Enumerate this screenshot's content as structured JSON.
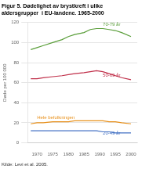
{
  "chart_data": {
    "type": "line",
    "title": [
      "Figur 5. Dødelighet av brystkreft i ulike",
      "aldersgrupper  i EU-landene. 1965-2000"
    ],
    "ylabel": "Døde per 100 000",
    "source": "Kilde: Levi et al. 2005.",
    "x": [
      1968,
      1970,
      1972,
      1975,
      1978,
      1980,
      1982,
      1985,
      1987,
      1989,
      1991,
      1993,
      1995,
      1997,
      2000
    ],
    "series": [
      {
        "name": "70-79 år",
        "color": "#5a9e3a",
        "values": [
          93,
          95,
          97,
          100,
          103,
          106,
          108,
          110,
          113,
          114,
          114,
          113,
          112,
          110,
          106
        ]
      },
      {
        "name": "50-69 år",
        "color": "#c0304a",
        "values": [
          64,
          64,
          65,
          66,
          67,
          68,
          69,
          70,
          71,
          72,
          71,
          69,
          67,
          65,
          63
        ]
      },
      {
        "name": "Hele befolkningen",
        "color": "#e8901a",
        "values": [
          19,
          20,
          20,
          21,
          21,
          21,
          22,
          22,
          22,
          22,
          22,
          21,
          21,
          20,
          19
        ]
      },
      {
        "name": "20-49 år",
        "color": "#4472c4",
        "values": [
          12,
          12,
          12,
          12,
          12,
          12,
          12,
          12,
          12,
          12,
          11,
          11,
          10,
          10,
          10
        ]
      }
    ],
    "annotations": [
      {
        "text": "70-79 år",
        "x": 1991,
        "y": 116
      },
      {
        "text": "50-69 år",
        "x": 1991,
        "y": 65
      },
      {
        "text": "Hele befolkningen",
        "x": 1970,
        "y": 23
      },
      {
        "text": "20-49 år",
        "x": 1991,
        "y": 7
      }
    ],
    "xlim": [
      1967,
      2002
    ],
    "xticks": [
      1970,
      1975,
      1980,
      1985,
      1990,
      1995,
      2000
    ],
    "ylim": [
      0,
      120
    ],
    "yticks": [
      0,
      20,
      40,
      60,
      80,
      100,
      120
    ],
    "grid": "y"
  }
}
